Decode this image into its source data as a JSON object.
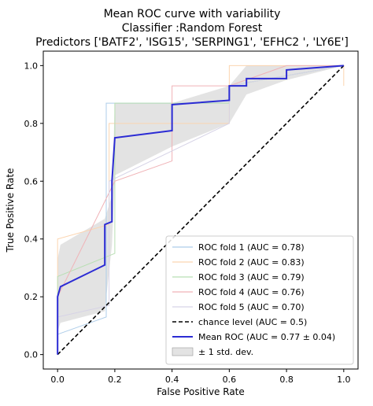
{
  "chart_data": {
    "type": "line",
    "title": [
      "Mean ROC curve with variability",
      "Classifier :Random Forest",
      "Predictors ['BATF2', 'ISG15', 'SERPING1', 'EFHC2 ', 'LY6E']"
    ],
    "xlabel": "False Positive Rate",
    "ylabel": "True Positive Rate",
    "xlim": [
      -0.05,
      1.05
    ],
    "ylim": [
      -0.05,
      1.05
    ],
    "xticks": [
      "0.0",
      "0.2",
      "0.4",
      "0.6",
      "0.8",
      "1.0"
    ],
    "yticks": [
      "0.0",
      "0.2",
      "0.4",
      "0.6",
      "0.8",
      "1.0"
    ],
    "grid": false,
    "legend_position": "lower-right",
    "series": [
      {
        "name": "ROC fold 1 (AUC = 0.78)",
        "color": "#aecde9",
        "style": "solid",
        "x": [
          0.0,
          0.0,
          0.17,
          0.17,
          0.6,
          0.6,
          1.0
        ],
        "y": [
          0.0,
          0.07,
          0.13,
          0.87,
          0.87,
          0.93,
          1.0
        ]
      },
      {
        "name": "ROC fold 2 (AUC = 0.83)",
        "color": "#fcd5b0",
        "style": "solid",
        "x": [
          0.0,
          0.0,
          0.18,
          0.18,
          0.6,
          0.6,
          1.0,
          1.0
        ],
        "y": [
          0.0,
          0.4,
          0.45,
          0.8,
          0.8,
          1.0,
          1.0,
          0.93
        ]
      },
      {
        "name": "ROC fold 3 (AUC = 0.79)",
        "color": "#b8dfb3",
        "style": "solid",
        "x": [
          0.0,
          0.0,
          0.2,
          0.2,
          0.6,
          0.6,
          1.0
        ],
        "y": [
          0.0,
          0.27,
          0.35,
          0.87,
          0.87,
          0.93,
          1.0
        ]
      },
      {
        "name": "ROC fold 4 (AUC = 0.76)",
        "color": "#f0b2b6",
        "style": "solid",
        "x": [
          0.0,
          0.0,
          0.2,
          0.4,
          0.4,
          0.6,
          0.8,
          1.0
        ],
        "y": [
          0.0,
          0.2,
          0.6,
          0.67,
          0.93,
          0.93,
          1.0,
          1.0
        ]
      },
      {
        "name": "ROC fold 5 (AUC = 0.70)",
        "color": "#d6d3e6",
        "style": "solid",
        "x": [
          0.0,
          0.0,
          0.18,
          0.18,
          0.6,
          0.6,
          1.0
        ],
        "y": [
          0.0,
          0.13,
          0.17,
          0.6,
          0.8,
          0.93,
          1.0
        ]
      },
      {
        "name": "chance level (AUC = 0.5)",
        "color": "#000000",
        "style": "dashed",
        "x": [
          0.0,
          1.0
        ],
        "y": [
          0.0,
          1.0
        ]
      },
      {
        "name": "Mean ROC (AUC = 0.77 ± 0.04)",
        "color": "#2b2bd4",
        "style": "solid",
        "x": [
          0.0,
          0.0,
          0.01,
          0.165,
          0.165,
          0.19,
          0.19,
          0.2,
          0.2,
          0.4,
          0.4,
          0.6,
          0.6,
          0.66,
          0.66,
          0.8,
          0.8,
          1.0
        ],
        "y": [
          0.0,
          0.2,
          0.235,
          0.31,
          0.45,
          0.46,
          0.6,
          0.75,
          0.75,
          0.775,
          0.865,
          0.88,
          0.93,
          0.93,
          0.955,
          0.955,
          0.985,
          1.0
        ]
      }
    ],
    "band": {
      "name": "± 1 std. dev.",
      "color": "#b0b0b0",
      "x": [
        0.0,
        0.01,
        0.165,
        0.19,
        0.2,
        0.4,
        0.6,
        0.66,
        0.8,
        1.0
      ],
      "upper": [
        0.33,
        0.38,
        0.47,
        0.55,
        0.87,
        0.87,
        0.93,
        1.0,
        1.0,
        1.0
      ],
      "lower": [
        0.08,
        0.11,
        0.15,
        0.38,
        0.62,
        0.72,
        0.8,
        0.9,
        0.95,
        1.0
      ]
    }
  }
}
